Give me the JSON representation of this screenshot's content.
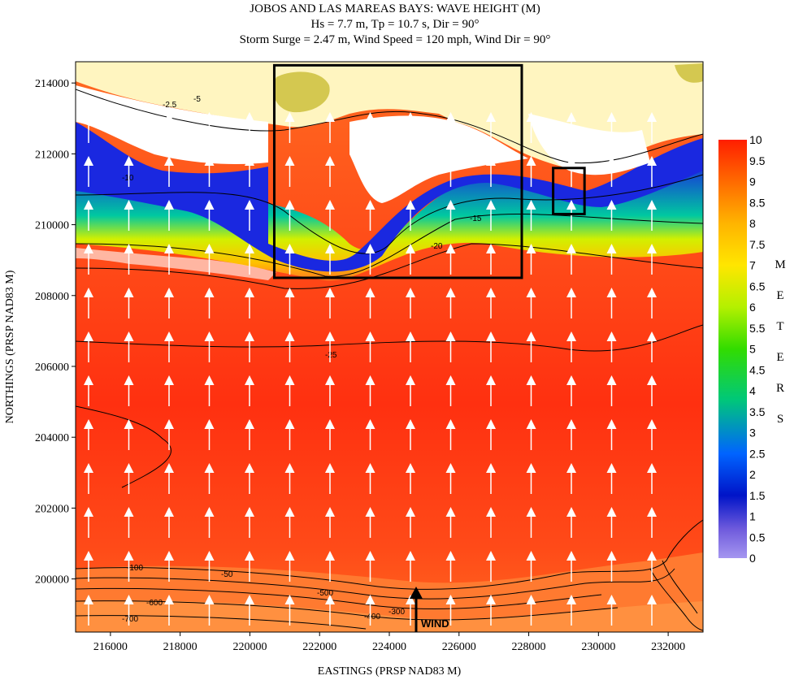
{
  "title": {
    "line1": "JOBOS AND LAS MAREAS BAYS: WAVE HEIGHT (M)",
    "line2": "Hs = 7.7 m, Tp = 10.7 s, Dir = 90°",
    "line3": "Storm Surge = 2.47 m, Wind Speed = 120 mph, Wind Dir = 90°"
  },
  "map": {
    "x_axis_title": "EASTINGS (PRSP NAD83 M)",
    "y_axis_title": "NORTHINGS (PRSP NAD83 M)",
    "x_range": [
      215000,
      233000
    ],
    "y_range": [
      198500,
      214600
    ],
    "x_ticks": [
      216000,
      218000,
      220000,
      222000,
      224000,
      226000,
      228000,
      230000,
      232000
    ],
    "y_ticks": [
      200000,
      202000,
      204000,
      206000,
      208000,
      210000,
      212000,
      214000
    ],
    "wind_label": "WIND",
    "contour_labels": [
      "-2.5",
      "-5",
      "-10",
      "-15",
      "-20",
      "-25",
      "-50",
      "-100",
      "-300",
      "-400",
      "-500",
      "-600",
      "-700"
    ],
    "zoom_boxes": [
      {
        "x0": 220700,
        "x1": 227800,
        "y0": 208500,
        "y1": 214500
      },
      {
        "x0": 228700,
        "x1": 229600,
        "y0": 210300,
        "y1": 211600
      }
    ]
  },
  "colorbar": {
    "ticks": [
      "10",
      "9.5",
      "9",
      "8.5",
      "8",
      "7.5",
      "7",
      "6.5",
      "6",
      "5.5",
      "5",
      "4.5",
      "4",
      "3.5",
      "3",
      "2.5",
      "2",
      "1.5",
      "1",
      "0.5",
      "0"
    ],
    "unit_letters": [
      "M",
      "E",
      "T",
      "E",
      "R",
      "S"
    ],
    "colors": [
      "#ff1e00",
      "#ff6a00",
      "#ffb400",
      "#ffe600",
      "#b4f000",
      "#32dc00",
      "#00c878",
      "#0064ff",
      "#0014c8",
      "#6e5adc",
      "#a596f0"
    ]
  },
  "legend_colors": {
    "land": "#fff5c0",
    "deep_water": "#ff3a10",
    "shallow": "#1a28e0",
    "arrow": "#ffffff",
    "frame": "#000000"
  }
}
